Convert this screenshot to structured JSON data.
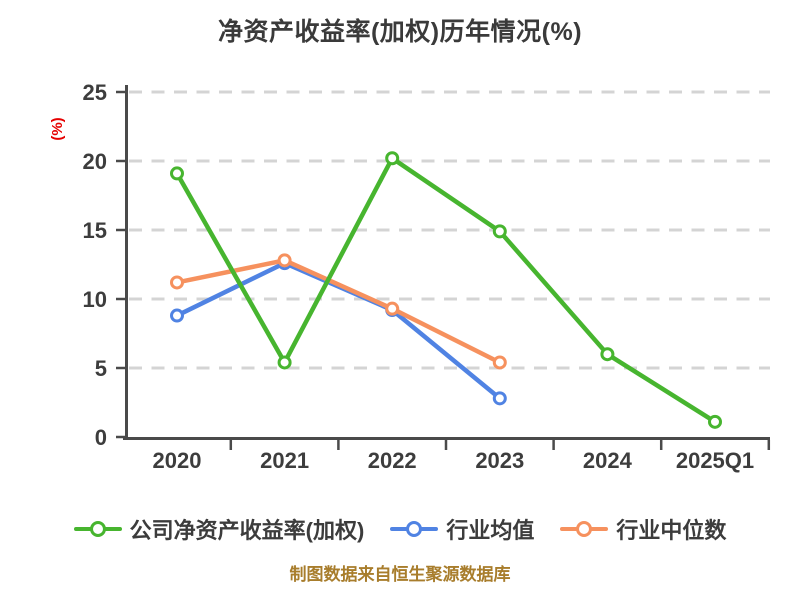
{
  "title": "净资产收益率(加权)历年情况(%)",
  "chart_data": {
    "type": "line",
    "title": "净资产收益率(加权)历年情况(%)",
    "categories": [
      "2020",
      "2021",
      "2022",
      "2023",
      "2024",
      "2025Q1"
    ],
    "series": [
      {
        "key": "company-roe",
        "name": "公司净资产收益率(加权)",
        "color": "#47B52F",
        "values": [
          19.1,
          5.4,
          20.2,
          14.9,
          6.0,
          1.1
        ]
      },
      {
        "key": "industry-mean",
        "name": "行业均值",
        "color": "#5083E3",
        "values": [
          8.8,
          12.6,
          9.2,
          2.8
        ]
      },
      {
        "key": "industry-median",
        "name": "行业中位数",
        "color": "#F6915E",
        "values": [
          11.2,
          12.8,
          9.3,
          5.4
        ]
      }
    ],
    "ylabel": "(%)",
    "ylim": [
      0,
      25
    ],
    "yticks": [
      0,
      5,
      10,
      15,
      20,
      25
    ],
    "grid": "horizontal-dashed",
    "legend_position": "bottom",
    "marker": "white-filled-circle"
  },
  "colors": {
    "background": "#FFFFFF",
    "title": "#3A3A3A",
    "axis": "#4A4A4A",
    "tick_label": "#3D3D3D",
    "gridline": "#D4D4D4",
    "ylabel": "#E60000",
    "caption": "#A87D2C"
  },
  "footer": {
    "caption": "制图数据来自恒生聚源数据库"
  }
}
